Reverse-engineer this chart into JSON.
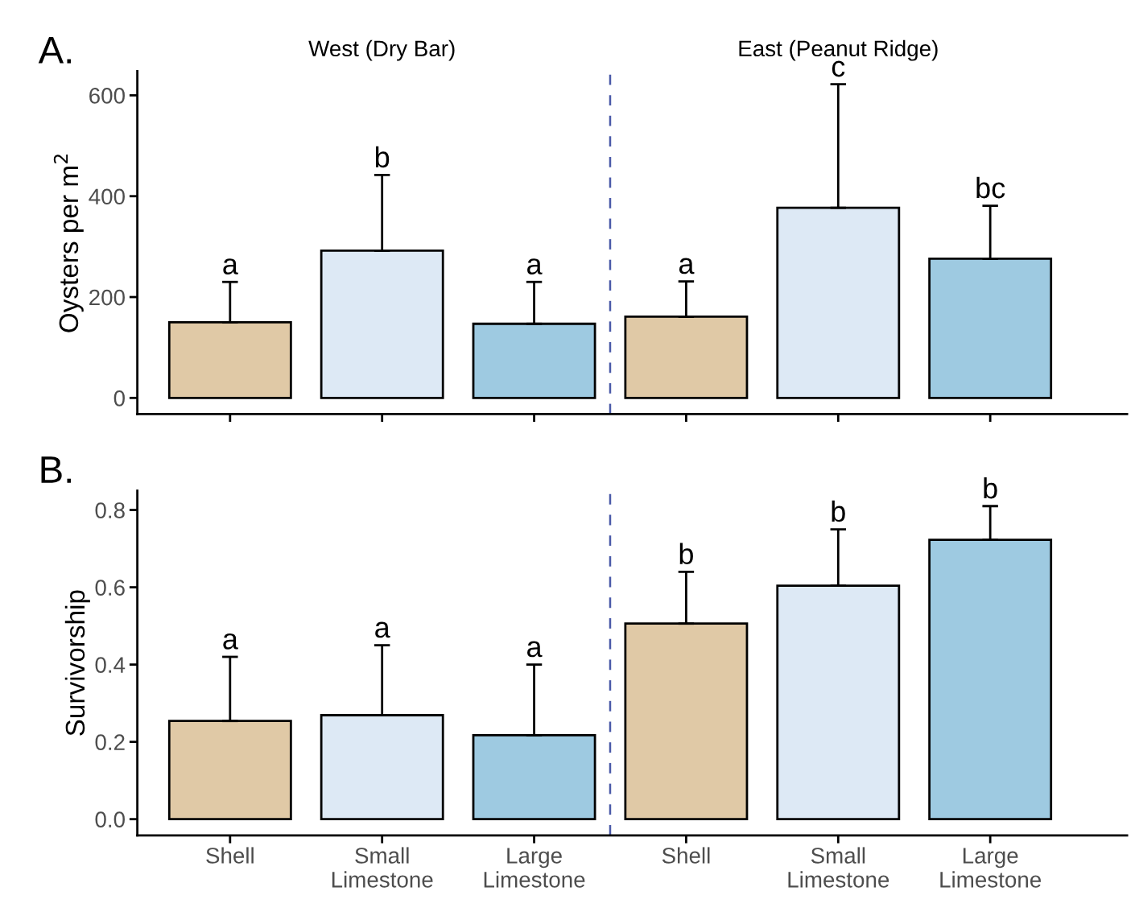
{
  "chart_data": [
    {
      "type": "bar",
      "title": "A.",
      "ylabel": "Oysters per m$^{2}$",
      "categories": [
        null,
        null,
        null,
        null,
        null,
        null
      ],
      "values": [
        150,
        292,
        147,
        161,
        377,
        276
      ],
      "errors": [
        [
          150,
          230
        ],
        [
          292,
          442
        ],
        [
          147,
          230
        ],
        [
          161,
          231
        ],
        [
          377,
          622
        ],
        [
          276,
          381
        ]
      ],
      "colors": [
        "#e0c9a6",
        "#dde9f5",
        "#9ecae1",
        "#e0c9a6",
        "#dde9f5",
        "#9ecae1"
      ],
      "annotations": [
        {
          "text": "a",
          "y": 230
        },
        {
          "text": "b",
          "y": 442
        },
        {
          "text": "a",
          "y": 230
        },
        {
          "text": "a",
          "y": 231
        },
        {
          "text": "c",
          "y": 622
        },
        {
          "text": "bc",
          "y": 381
        },
        "West (Dry Bar)",
        "East (Peanut Ridge)"
      ],
      "ylim": [
        -32,
        648
      ],
      "yticks": [
        0,
        200,
        400,
        600
      ],
      "tick_labels": "y",
      "grid": false,
      "legend": false
    },
    {
      "type": "bar",
      "title": "B.",
      "ylabel": "Survivorship",
      "categories": [
        "Shell",
        "Small\nLimestone",
        "Large\nLimestone",
        "Shell",
        "Small\nLimestone",
        "Large\nLimestone"
      ],
      "values": [
        0.254,
        0.269,
        0.217,
        0.506,
        0.604,
        0.723
      ],
      "errors": [
        [
          0.254,
          0.42
        ],
        [
          0.269,
          0.45
        ],
        [
          0.217,
          0.4
        ],
        [
          0.506,
          0.64
        ],
        [
          0.604,
          0.75
        ],
        [
          0.723,
          0.81
        ]
      ],
      "colors": [
        "#e0c9a6",
        "#dde9f5",
        "#9ecae1",
        "#e0c9a6",
        "#dde9f5",
        "#9ecae1"
      ],
      "annotations": [
        {
          "text": "a",
          "y": 0.42
        },
        {
          "text": "a",
          "y": 0.45
        },
        {
          "text": "a",
          "y": 0.4
        },
        {
          "text": "b",
          "y": 0.64
        },
        {
          "text": "b",
          "y": 0.75
        },
        {
          "text": "b",
          "y": 0.81
        }
      ],
      "ylim": [
        -0.042,
        0.85
      ],
      "yticks": [
        {
          "value": 0,
          "label": "0.0"
        },
        0.2,
        0.4,
        0.6,
        0.8
      ],
      "grid": false,
      "legend": false
    }
  ]
}
